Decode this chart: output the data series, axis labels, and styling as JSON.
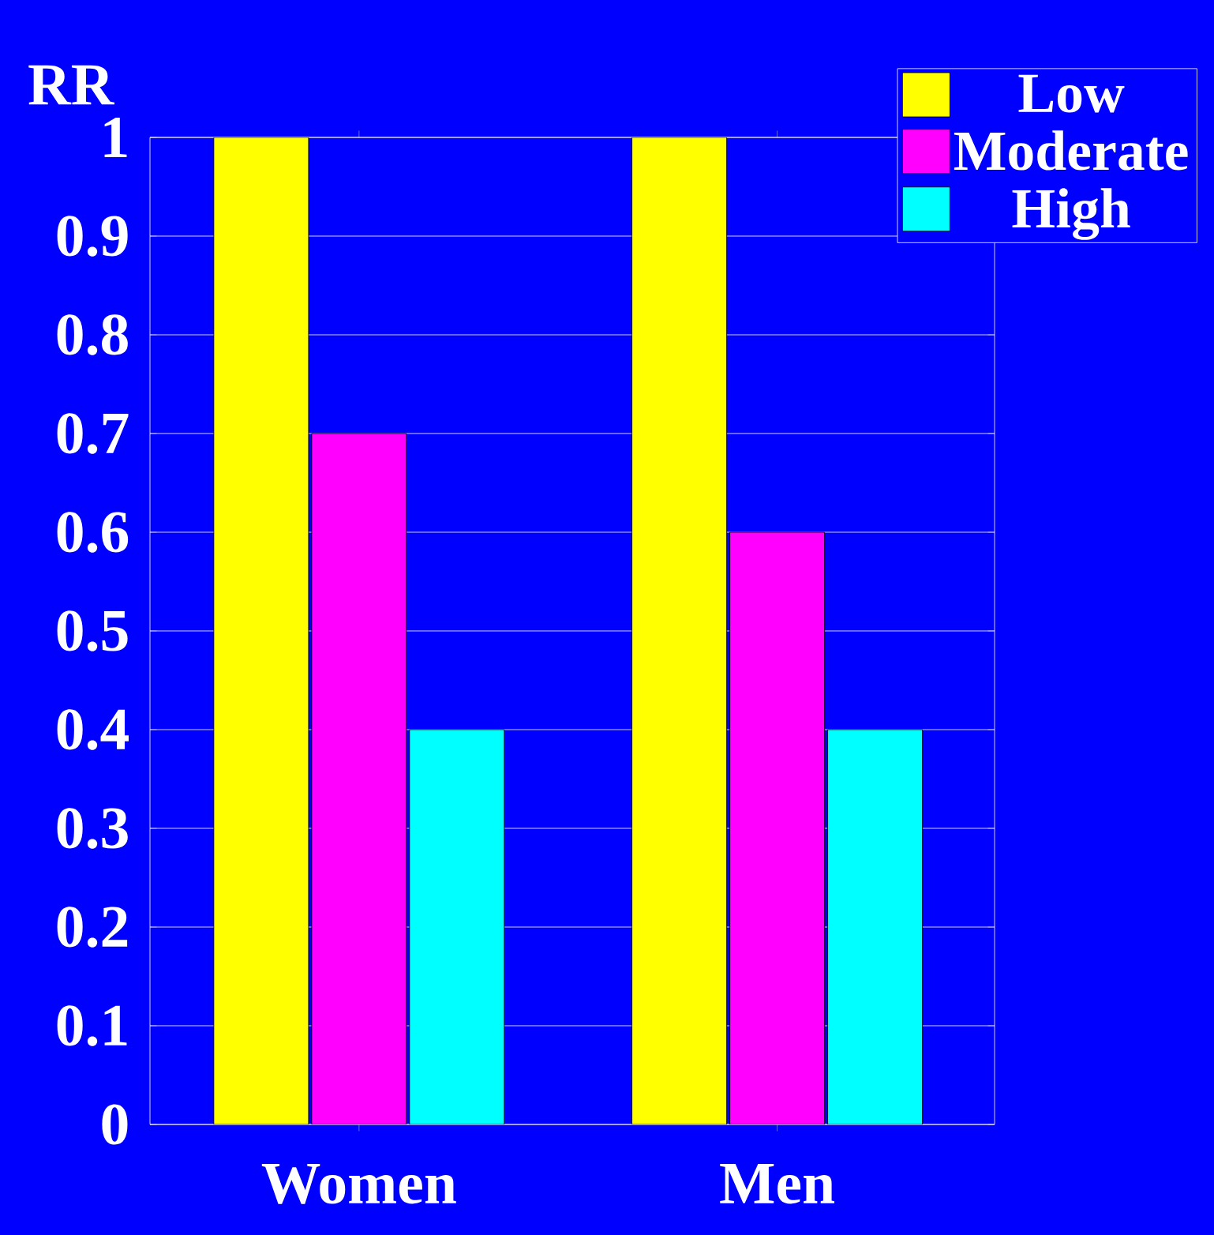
{
  "chart_data": {
    "type": "bar",
    "ylabel": "RR",
    "categories": [
      "Women",
      "Men"
    ],
    "series": [
      {
        "name": "Low",
        "color": "#ffff00",
        "values": [
          1,
          1
        ]
      },
      {
        "name": "Moderate",
        "color": "#ff00ff",
        "values": [
          0.7,
          0.6
        ]
      },
      {
        "name": "High",
        "color": "#00ffff",
        "values": [
          0.4,
          0.4
        ]
      }
    ],
    "ylim": [
      0,
      1
    ],
    "yticks": [
      0,
      0.1,
      0.2,
      0.3,
      0.4,
      0.5,
      0.6,
      0.7,
      0.8,
      0.9,
      1
    ],
    "grid": "y",
    "legend": "top right"
  }
}
